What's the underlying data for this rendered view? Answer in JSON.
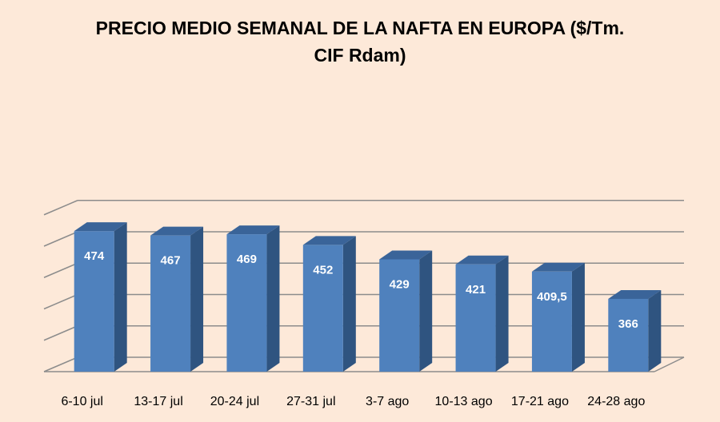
{
  "chart_data": {
    "type": "bar",
    "title_line1": "PRECIO MEDIO SEMANAL DE LA NAFTA EN EUROPA ($/Tm.",
    "title_line2": "CIF Rdam)",
    "categories": [
      "6-10 jul",
      "13-17 jul",
      "20-24 jul",
      "27-31 jul",
      "3-7 ago",
      "10-13 ago",
      "17-21 ago",
      "24-28 ago"
    ],
    "values": [
      474,
      467,
      469,
      452,
      429,
      421,
      409.5,
      366
    ],
    "value_labels": [
      "474",
      "467",
      "469",
      "452",
      "429",
      "421",
      "409,5",
      "366"
    ],
    "ylim": [
      250,
      500
    ],
    "grid": true,
    "legend": "none",
    "colors": {
      "bar_front": "#4f81bd",
      "bar_side": "#2f5480",
      "bar_top": "#3a6499",
      "grid": "#8c8c8c",
      "label": "#ffffff"
    }
  }
}
